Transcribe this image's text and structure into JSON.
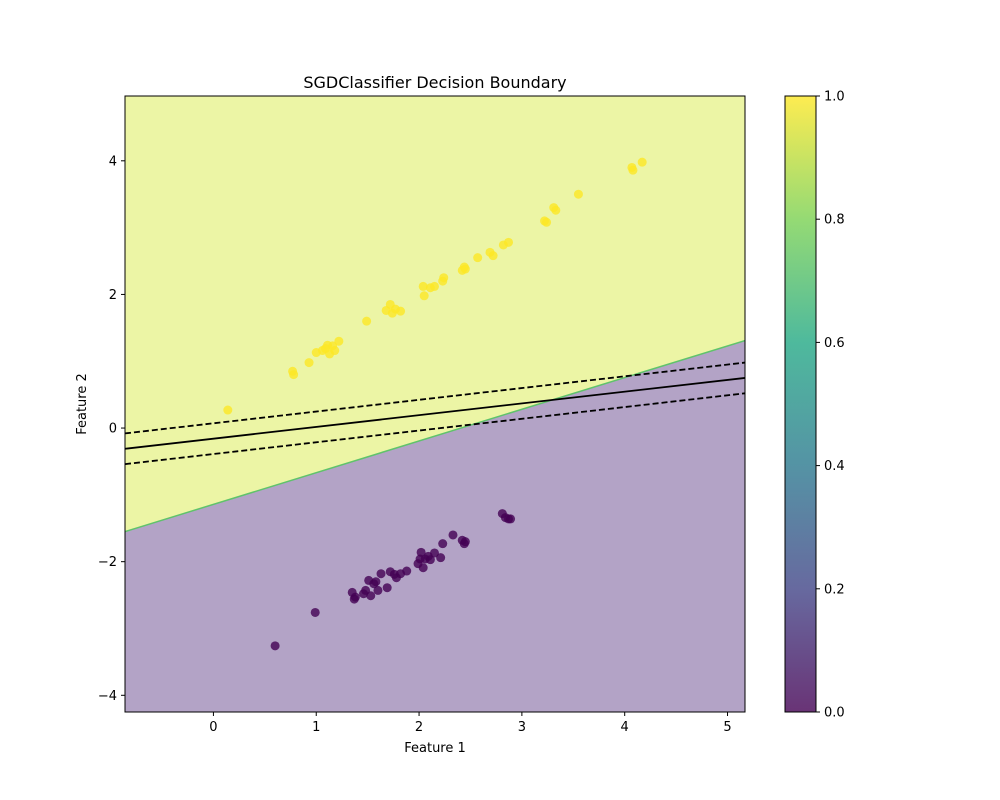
{
  "chart_data": {
    "type": "scatter",
    "title": "SGDClassifier Decision Boundary",
    "xlabel": "Feature 1",
    "ylabel": "Feature 2",
    "xlim": [
      -0.86,
      5.17
    ],
    "ylim": [
      -4.25,
      4.97
    ],
    "xticks": [
      0,
      1,
      2,
      3,
      4,
      5
    ],
    "yticks": [
      -4,
      -2,
      0,
      2,
      4
    ],
    "xtick_labels": [
      "0",
      "1",
      "2",
      "3",
      "4",
      "5"
    ],
    "ytick_labels": [
      "−4",
      "−2",
      "0",
      "2",
      "4"
    ],
    "grid": false,
    "regions": {
      "boundary_line": [
        [
          -0.86,
          -1.55
        ],
        [
          5.17,
          1.31
        ]
      ],
      "class_0_color": "#b3a3c6",
      "class_1_color": "#ecf5a5",
      "edge_color": "#5fc36b"
    },
    "margin_lines": {
      "decision": [
        [
          -0.86,
          -0.31
        ],
        [
          5.17,
          0.75
        ]
      ],
      "upper": [
        [
          -0.86,
          -0.08
        ],
        [
          5.17,
          0.98
        ]
      ],
      "lower": [
        [
          -0.86,
          -0.54
        ],
        [
          5.17,
          0.52
        ]
      ]
    },
    "series": [
      {
        "class": 0,
        "color": "#440154",
        "points": [
          [
            0.6,
            -3.26
          ],
          [
            0.99,
            -2.76
          ],
          [
            1.35,
            -2.46
          ],
          [
            1.37,
            -2.56
          ],
          [
            1.38,
            -2.53
          ],
          [
            1.46,
            -2.48
          ],
          [
            1.48,
            -2.43
          ],
          [
            1.51,
            -2.28
          ],
          [
            1.53,
            -2.51
          ],
          [
            1.56,
            -2.33
          ],
          [
            1.58,
            -2.3
          ],
          [
            1.6,
            -2.43
          ],
          [
            1.63,
            -2.18
          ],
          [
            1.69,
            -2.39
          ],
          [
            1.72,
            -2.15
          ],
          [
            1.76,
            -2.19
          ],
          [
            1.78,
            -2.24
          ],
          [
            1.82,
            -2.18
          ],
          [
            1.88,
            -2.14
          ],
          [
            1.99,
            -2.03
          ],
          [
            2.01,
            -1.96
          ],
          [
            2.02,
            -1.86
          ],
          [
            2.04,
            -2.09
          ],
          [
            2.06,
            -1.96
          ],
          [
            2.09,
            -1.92
          ],
          [
            2.11,
            -1.97
          ],
          [
            2.15,
            -1.87
          ],
          [
            2.21,
            -1.94
          ],
          [
            2.23,
            -1.73
          ],
          [
            2.33,
            -1.6
          ],
          [
            2.42,
            -1.68
          ],
          [
            2.44,
            -1.73
          ],
          [
            2.45,
            -1.7
          ],
          [
            2.81,
            -1.28
          ],
          [
            2.84,
            -1.34
          ],
          [
            2.87,
            -1.36
          ],
          [
            2.89,
            -1.36
          ]
        ]
      },
      {
        "class": 1,
        "color": "#fde725",
        "points": [
          [
            0.14,
            0.27
          ],
          [
            0.77,
            0.85
          ],
          [
            0.78,
            0.8
          ],
          [
            0.93,
            0.98
          ],
          [
            1.0,
            1.13
          ],
          [
            1.06,
            1.16
          ],
          [
            1.09,
            1.19
          ],
          [
            1.11,
            1.24
          ],
          [
            1.13,
            1.11
          ],
          [
            1.16,
            1.23
          ],
          [
            1.18,
            1.16
          ],
          [
            1.22,
            1.3
          ],
          [
            1.49,
            1.6
          ],
          [
            1.68,
            1.76
          ],
          [
            1.72,
            1.85
          ],
          [
            1.74,
            1.72
          ],
          [
            1.77,
            1.78
          ],
          [
            1.82,
            1.75
          ],
          [
            2.04,
            2.12
          ],
          [
            2.05,
            1.98
          ],
          [
            2.11,
            2.1
          ],
          [
            2.15,
            2.12
          ],
          [
            2.23,
            2.2
          ],
          [
            2.24,
            2.25
          ],
          [
            2.42,
            2.36
          ],
          [
            2.44,
            2.41
          ],
          [
            2.45,
            2.38
          ],
          [
            2.57,
            2.55
          ],
          [
            2.69,
            2.63
          ],
          [
            2.72,
            2.58
          ],
          [
            2.82,
            2.74
          ],
          [
            2.87,
            2.78
          ],
          [
            3.22,
            3.1
          ],
          [
            3.24,
            3.08
          ],
          [
            3.31,
            3.3
          ],
          [
            3.33,
            3.26
          ],
          [
            3.55,
            3.5
          ],
          [
            4.07,
            3.9
          ],
          [
            4.08,
            3.86
          ],
          [
            4.17,
            3.98
          ]
        ]
      }
    ],
    "colorbar": {
      "min": 0.0,
      "max": 1.0,
      "ticks": [
        0.0,
        0.2,
        0.4,
        0.6,
        0.8,
        1.0
      ],
      "tick_labels": [
        "0.0",
        "0.2",
        "0.4",
        "0.6",
        "0.8",
        "1.0"
      ],
      "stops": [
        "#440154",
        "#414487",
        "#2a788e",
        "#22a884",
        "#7ad151",
        "#fde725"
      ]
    }
  }
}
